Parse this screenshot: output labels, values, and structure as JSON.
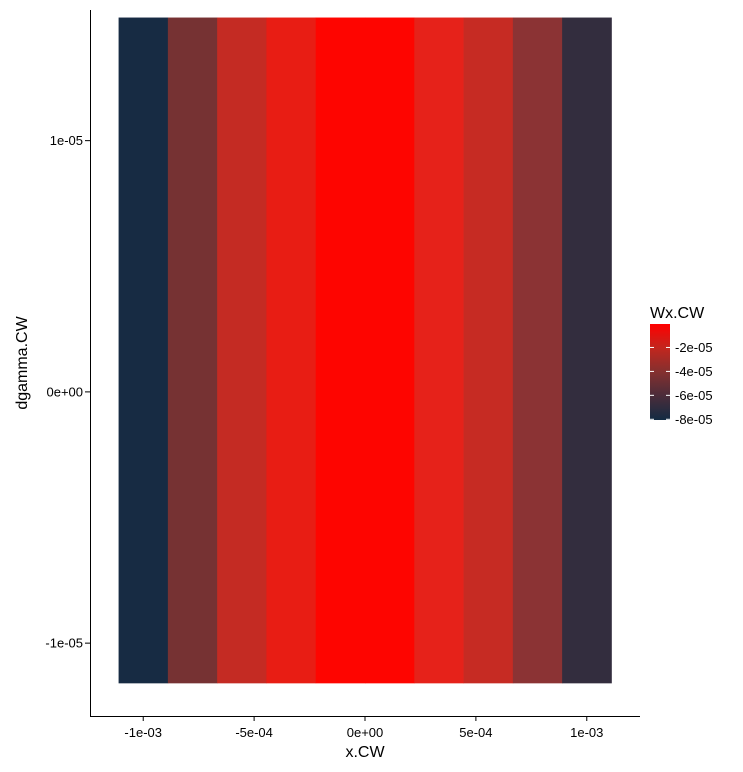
{
  "chart_data": {
    "type": "heatmap",
    "title": "",
    "xlabel": "x.CW",
    "ylabel": "dgamma.CW",
    "x_ticks": [
      {
        "value": -0.001,
        "label": "-1e-03"
      },
      {
        "value": -0.0005,
        "label": "-5e-04"
      },
      {
        "value": 0,
        "label": "0e+00"
      },
      {
        "value": 0.0005,
        "label": "5e-04"
      },
      {
        "value": 0.001,
        "label": "1e-03"
      }
    ],
    "y_ticks": [
      {
        "value": 1e-05,
        "label": "1e-05"
      },
      {
        "value": 0,
        "label": "0e+00"
      },
      {
        "value": -1e-05,
        "label": "-1e-05"
      }
    ],
    "xlim": [
      -0.00124,
      0.00124
    ],
    "ylim": [
      -1.29e-05,
      1.52e-05
    ],
    "tile_x_range": [
      -0.0011111,
      0.0011111
    ],
    "tile_y_range": [
      -1.16e-05,
      1.49e-05
    ],
    "columns": [
      {
        "x_center": -0.001,
        "wx": -8e-05,
        "color": "#172B43"
      },
      {
        "x_center": -0.000778,
        "wx": -6.2e-05,
        "color": "#763233"
      },
      {
        "x_center": -0.000556,
        "wx": -3.8e-05,
        "color": "#C42B23"
      },
      {
        "x_center": -0.000333,
        "wx": -2e-05,
        "color": "#E81D14"
      },
      {
        "x_center": -0.000111,
        "wx": -4e-06,
        "color": "#FE0500"
      },
      {
        "x_center": 0.000111,
        "wx": -4e-06,
        "color": "#FE0500"
      },
      {
        "x_center": 0.000333,
        "wx": -2.2e-05,
        "color": "#E6221A"
      },
      {
        "x_center": 0.000556,
        "wx": -3.7e-05,
        "color": "#C62B23"
      },
      {
        "x_center": 0.000778,
        "wx": -5.8e-05,
        "color": "#8B3334"
      },
      {
        "x_center": 0.001,
        "wx": -7.6e-05,
        "color": "#332D3E"
      }
    ],
    "legend": {
      "title": "Wx.CW",
      "position": "right",
      "ticks": [
        {
          "value": -2e-05,
          "label": "-2e-05"
        },
        {
          "value": -4e-05,
          "label": "-4e-05"
        },
        {
          "value": -6e-05,
          "label": "-6e-05"
        },
        {
          "value": -8e-05,
          "label": "-8e-05"
        }
      ],
      "range": [
        -8.06e-05,
        -4e-07
      ],
      "low_color": "#132B43",
      "high_color": "#FF0000"
    },
    "grid": false
  }
}
